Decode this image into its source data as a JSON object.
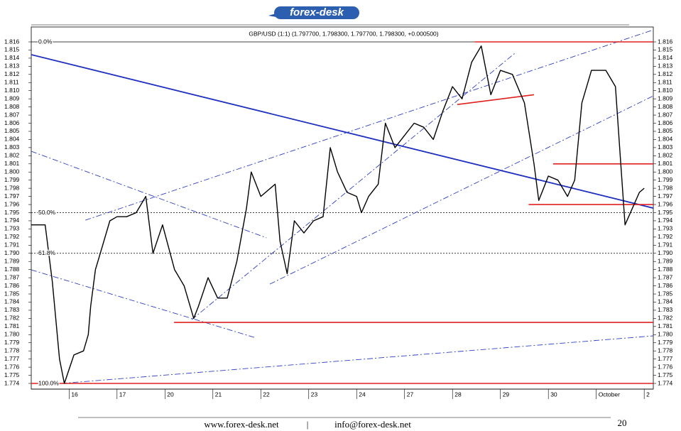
{
  "header": {
    "logo": "forex-desk"
  },
  "chart_data": {
    "type": "line",
    "title": "GBP/USD (1:1) (1.797700, 1.798300, 1.797700, 1.798300, +0.000500)",
    "xlim": [
      -0.79,
      12.19
    ],
    "xticks": [
      {
        "value": 0,
        "label": "16"
      },
      {
        "value": 1,
        "label": "17"
      },
      {
        "value": 2,
        "label": "20"
      },
      {
        "value": 3,
        "label": "21"
      },
      {
        "value": 4,
        "label": "22"
      },
      {
        "value": 5,
        "label": "23"
      },
      {
        "value": 6,
        "label": "24"
      },
      {
        "value": 7,
        "label": "27"
      },
      {
        "value": 8,
        "label": "28"
      },
      {
        "value": 9,
        "label": "29"
      },
      {
        "value": 10,
        "label": "30"
      },
      {
        "value": 11,
        "label": "October"
      },
      {
        "value": 12,
        "label": "2"
      }
    ],
    "ylim": [
      1.774,
      1.816
    ],
    "yticks": [
      1.774,
      1.775,
      1.776,
      1.777,
      1.778,
      1.779,
      {
        "value": 1.78,
        "label": "1.780"
      },
      1.781,
      1.782,
      1.783,
      1.784,
      1.785,
      1.786,
      1.787,
      1.788,
      1.789,
      {
        "value": 1.79,
        "label": "1.790"
      },
      1.791,
      1.792,
      1.793,
      1.794,
      1.795,
      1.796,
      1.797,
      1.798,
      1.799,
      {
        "value": 1.8,
        "label": "1.800"
      },
      1.801,
      1.802,
      1.803,
      1.804,
      1.805,
      1.806,
      1.807,
      1.808,
      1.809,
      {
        "value": 1.81,
        "label": "1.810"
      },
      1.811,
      1.812,
      1.813,
      1.814,
      1.815,
      1.816
    ],
    "series": [
      {
        "color": "#000000",
        "x": [
          -0.79,
          -0.5,
          -0.35,
          -0.2,
          -0.1,
          0.1,
          0.3,
          0.4,
          0.45,
          0.55,
          0.7,
          0.85,
          1.0,
          1.2,
          1.4,
          1.6,
          1.75,
          1.95,
          2.2,
          2.4,
          2.6,
          2.7,
          2.9,
          3.1,
          3.3,
          3.5,
          3.7,
          3.8,
          4.0,
          4.3,
          4.4,
          4.55,
          4.7,
          4.9,
          5.1,
          5.3,
          5.45,
          5.6,
          5.8,
          6.0,
          6.1,
          6.25,
          6.45,
          6.6,
          6.8,
          7.0,
          7.2,
          7.4,
          7.6,
          7.8,
          8.0,
          8.2,
          8.4,
          8.6,
          8.8,
          9.0,
          9.25,
          9.5,
          9.7,
          9.8,
          10.0,
          10.2,
          10.4,
          10.55,
          10.7,
          10.9,
          11.2,
          11.4,
          11.5,
          11.6,
          11.75,
          11.9,
          12.0
        ],
        "values": [
          1.7935,
          1.7935,
          1.7865,
          1.777,
          1.774,
          1.7775,
          1.778,
          1.78,
          1.7835,
          1.788,
          1.791,
          1.794,
          1.7945,
          1.7945,
          1.795,
          1.797,
          1.79,
          1.7935,
          1.788,
          1.786,
          1.782,
          1.7835,
          1.787,
          1.7845,
          1.7845,
          1.789,
          1.7955,
          1.8,
          1.797,
          1.7985,
          1.7915,
          1.7875,
          1.794,
          1.7925,
          1.794,
          1.7945,
          1.803,
          1.8,
          1.7975,
          1.797,
          1.795,
          1.797,
          1.7985,
          1.806,
          1.803,
          1.8045,
          1.806,
          1.8055,
          1.804,
          1.8075,
          1.8105,
          1.809,
          1.8135,
          1.8155,
          1.8095,
          1.8125,
          1.812,
          1.8085,
          1.801,
          1.7965,
          1.7995,
          1.799,
          1.797,
          1.799,
          1.8085,
          1.8125,
          1.8125,
          1.8105,
          1.802,
          1.7935,
          1.7955,
          1.7975,
          1.798
        ]
      }
    ],
    "levels": [
      {
        "value": 1.816,
        "label": "0.0%"
      },
      {
        "value": 1.795,
        "label": "50.0%"
      },
      {
        "value": 1.79,
        "label": "61.8%"
      },
      {
        "value": 1.774,
        "label": "100.0%"
      }
    ],
    "red_lines": [
      {
        "color": "#e02020",
        "x": [
          8.47,
          12.19
        ],
        "y": [
          1.816,
          1.816
        ]
      },
      {
        "color": "#e02020",
        "x": [
          2.19,
          12.19
        ],
        "y": [
          1.7815,
          1.7815
        ]
      },
      {
        "color": "#e02020",
        "x": [
          -0.79,
          12.19
        ],
        "y": [
          1.774,
          1.774
        ]
      },
      {
        "color": "#e02020",
        "x": [
          10.1,
          12.19
        ],
        "y": [
          1.801,
          1.801
        ]
      },
      {
        "color": "#e02020",
        "x": [
          9.59,
          12.19
        ],
        "y": [
          1.796,
          1.796
        ]
      },
      {
        "color": "#e02020",
        "x": [
          8.1,
          9.7
        ],
        "y": [
          1.8083,
          1.8095
        ]
      }
    ],
    "trend_lines": [
      {
        "color": "#1f2fbf",
        "style": "solid",
        "x": [
          -0.79,
          12.19
        ],
        "y": [
          1.81443,
          1.79556
        ]
      },
      {
        "color": "#3040c0",
        "style": "dashdot",
        "x": [
          0.34,
          12.19
        ],
        "y": [
          1.79408,
          1.81748
        ]
      },
      {
        "color": "#3040c0",
        "style": "dashdot",
        "x": [
          -0.16,
          12.19
        ],
        "y": [
          1.774,
          1.77985
        ]
      },
      {
        "color": "#3040c0",
        "style": "dashdot",
        "x": [
          -0.79,
          4.12
        ],
        "y": [
          1.80255,
          1.7919
        ]
      },
      {
        "color": "#3040c0",
        "style": "dashdot",
        "x": [
          -0.79,
          3.9
        ],
        "y": [
          1.78797,
          1.7796
        ]
      },
      {
        "color": "#3040c0",
        "style": "dashdot",
        "x": [
          2.56,
          9.3
        ],
        "y": [
          1.78185,
          1.8146
        ]
      },
      {
        "color": "#3040c0",
        "style": "dashdot",
        "x": [
          4.19,
          12.19
        ],
        "y": [
          1.78622,
          1.80936
        ]
      }
    ]
  },
  "footer": {
    "website": "www.forex-desk.net",
    "separator": "|",
    "email": "info@forex-desk.net",
    "page": "20"
  }
}
